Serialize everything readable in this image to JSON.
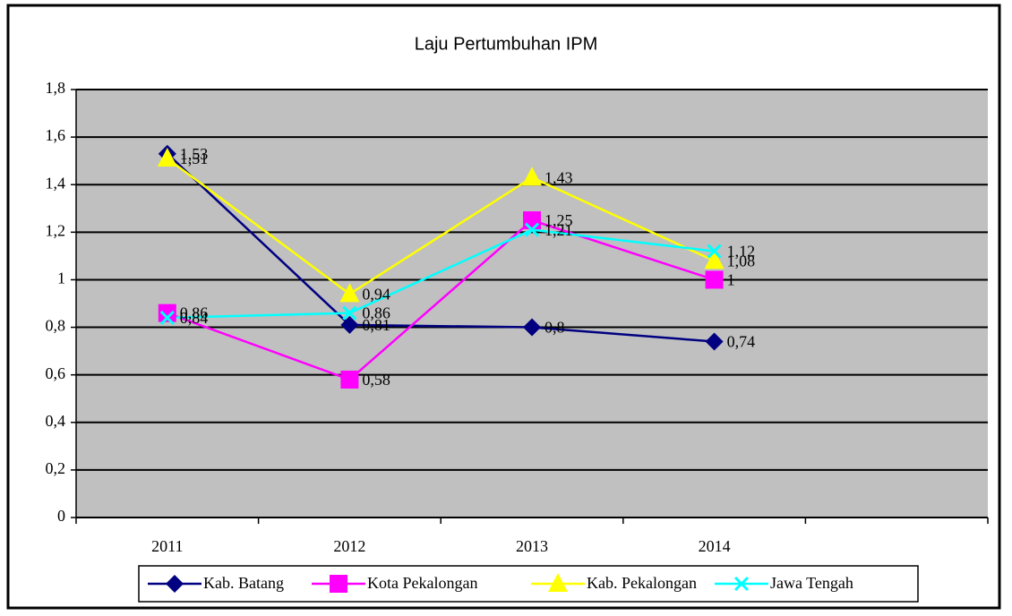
{
  "chart_data": {
    "type": "line",
    "title": "Laju Pertumbuhan IPM",
    "categories": [
      "2011",
      "2012",
      "2013",
      "2014",
      null
    ],
    "series": [
      {
        "name": "Kab. Batang",
        "color": "#000080",
        "marker": "diamond",
        "values": [
          1.53,
          0.81,
          0.8,
          0.74,
          null
        ],
        "value_labels": [
          "1,53",
          "0,81",
          "0,8",
          "0,74",
          null
        ]
      },
      {
        "name": "Kota Pekalongan",
        "color": "#ff00ff",
        "marker": "square",
        "values": [
          0.86,
          0.58,
          1.25,
          1,
          null
        ],
        "value_labels": [
          "0,86",
          "0,58",
          "1,25",
          "1",
          null
        ]
      },
      {
        "name": "Kab. Pekalongan",
        "color": "#ffff00",
        "marker": "triangle",
        "values": [
          1.51,
          0.94,
          1.43,
          1.08,
          null
        ],
        "value_labels": [
          "1,51",
          "0,94",
          "1,43",
          "1,08",
          null
        ]
      },
      {
        "name": "Jawa Tengah",
        "color": "#00ffff",
        "marker": "x",
        "values": [
          0.84,
          0.86,
          1.21,
          1.12,
          null
        ],
        "value_labels": [
          "0,84",
          "0,86",
          "1,21",
          "1,12",
          null
        ]
      }
    ],
    "ylim": [
      0,
      1.8
    ],
    "yticks": [
      0,
      {
        "value": 0.2,
        "label": "0,2"
      },
      {
        "value": 0.4,
        "label": "0,4"
      },
      {
        "value": 0.6,
        "label": "0,6"
      },
      {
        "value": 0.8,
        "label": "0,8"
      },
      1,
      {
        "value": 1.2,
        "label": "1,2"
      },
      {
        "value": 1.4,
        "label": "1,4"
      },
      {
        "value": 1.6,
        "label": "1,6"
      },
      {
        "value": 1.8,
        "label": "1,8"
      }
    ],
    "grid": true,
    "legend": "bottom"
  }
}
